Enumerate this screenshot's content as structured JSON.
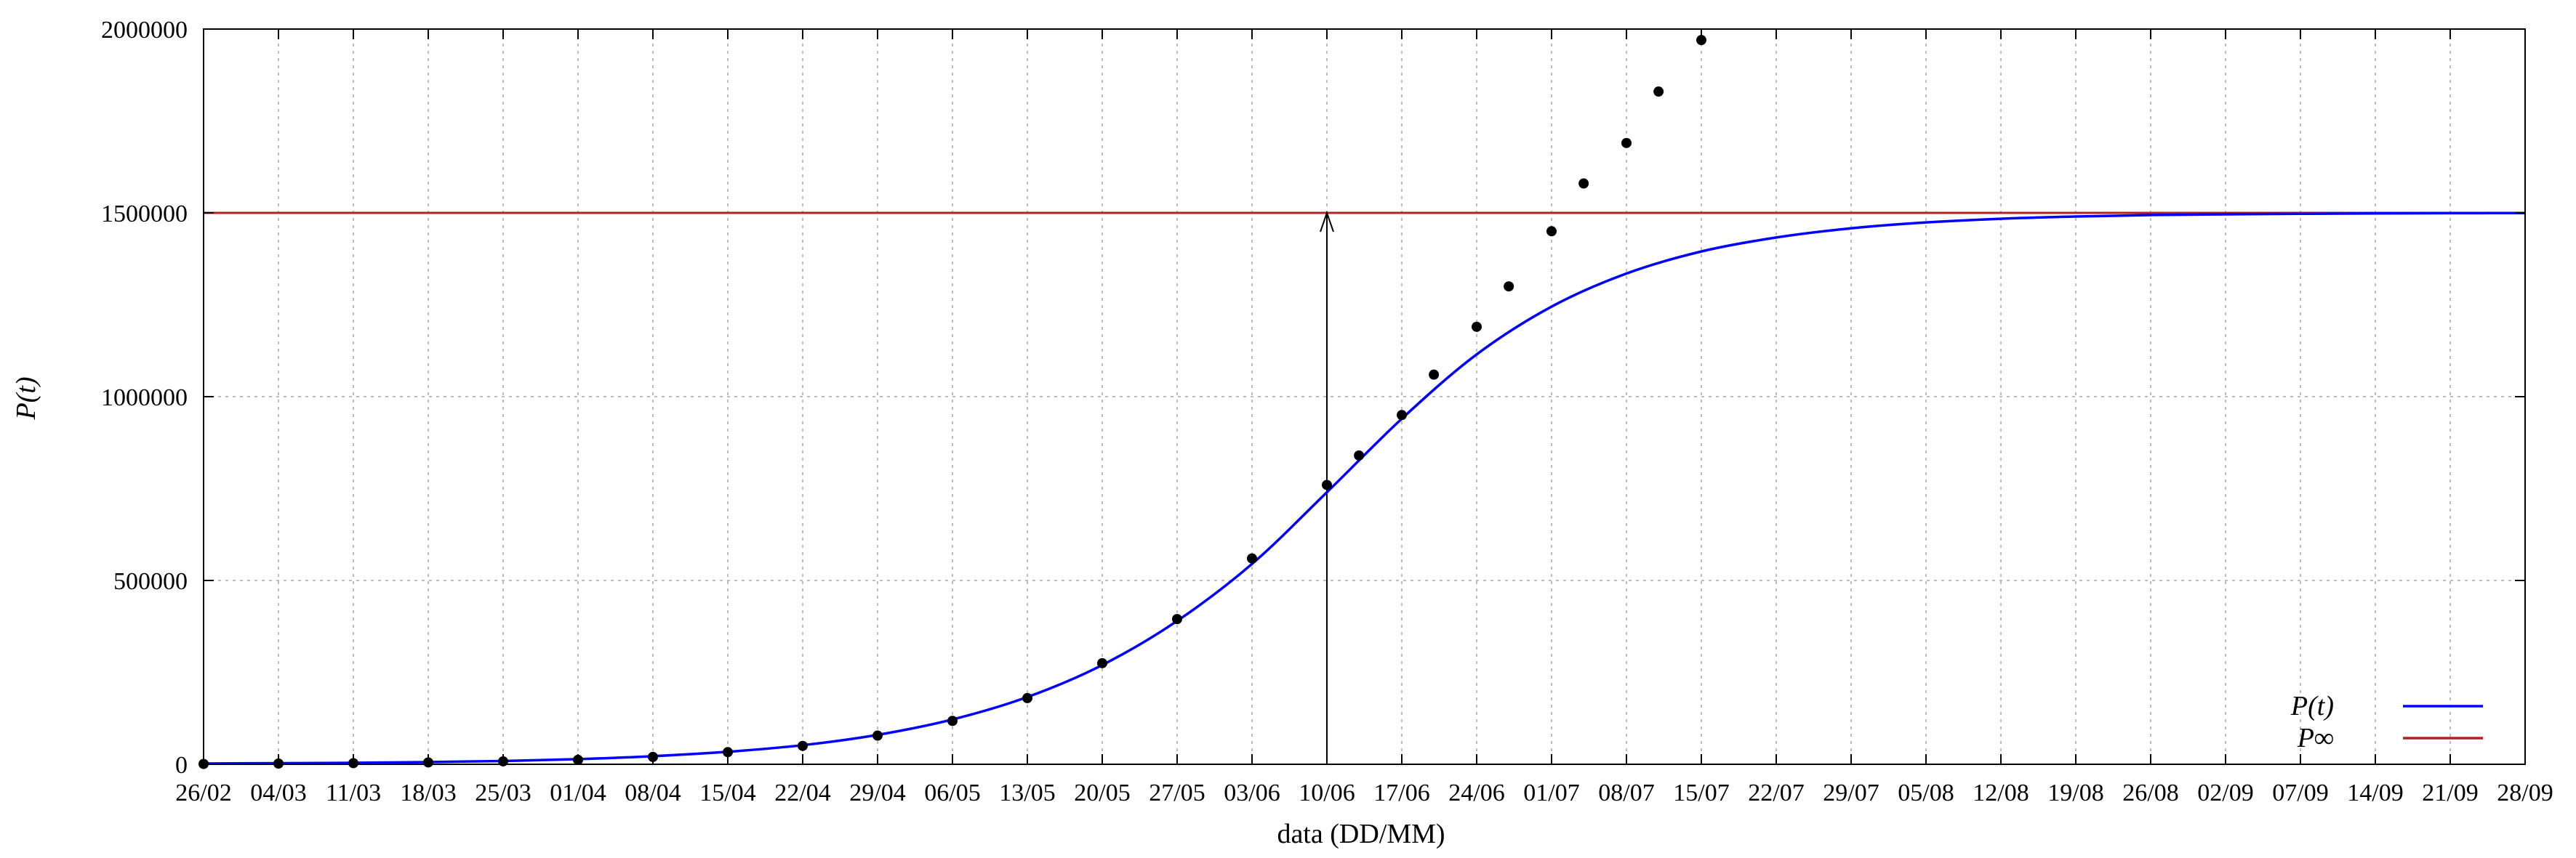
{
  "chart_data": {
    "type": "line",
    "title": "",
    "xlabel": "data (DD/MM)",
    "ylabel": "P(t)",
    "x_unit": "date (day/month)",
    "xlim": [
      "26/02",
      "28/09"
    ],
    "ylim": [
      0,
      2000000
    ],
    "grid": true,
    "legend": "bottom-right",
    "x_ticks": [
      "26/02",
      "04/03",
      "11/03",
      "18/03",
      "25/03",
      "01/04",
      "08/04",
      "15/04",
      "22/04",
      "29/04",
      "06/05",
      "13/05",
      "20/05",
      "27/05",
      "03/06",
      "10/06",
      "17/06",
      "24/06",
      "01/07",
      "08/07",
      "15/07",
      "22/07",
      "29/07",
      "05/08",
      "12/08",
      "19/08",
      "26/08",
      "02/09",
      "07/09",
      "14/09",
      "21/09",
      "28/09"
    ],
    "y_ticks": [
      0,
      500000,
      1000000,
      1500000,
      2000000
    ],
    "y_tick_labels": [
      "0",
      "500000",
      "1000000",
      "1500000",
      "2000000"
    ],
    "series": [
      {
        "name": "P(t)",
        "kind": "line",
        "color": "#0000ff",
        "model": "logistic",
        "points": [
          {
            "x": "26/02",
            "y": 2000
          },
          {
            "x": "04/03",
            "y": 3000
          },
          {
            "x": "11/03",
            "y": 4000
          },
          {
            "x": "18/03",
            "y": 6000
          },
          {
            "x": "25/03",
            "y": 9000
          },
          {
            "x": "01/04",
            "y": 14000
          },
          {
            "x": "08/04",
            "y": 22000
          },
          {
            "x": "15/04",
            "y": 34000
          },
          {
            "x": "22/04",
            "y": 52000
          },
          {
            "x": "29/04",
            "y": 80000
          },
          {
            "x": "06/05",
            "y": 122000
          },
          {
            "x": "13/05",
            "y": 183000
          },
          {
            "x": "20/05",
            "y": 270000
          },
          {
            "x": "27/05",
            "y": 390000
          },
          {
            "x": "03/06",
            "y": 545000
          },
          {
            "x": "10/06",
            "y": 740000
          },
          {
            "x": "17/06",
            "y": 940000
          },
          {
            "x": "24/06",
            "y": 1115000
          },
          {
            "x": "01/07",
            "y": 1245000
          },
          {
            "x": "08/07",
            "y": 1335000
          },
          {
            "x": "15/07",
            "y": 1395000
          },
          {
            "x": "22/07",
            "y": 1433000
          },
          {
            "x": "29/07",
            "y": 1458000
          },
          {
            "x": "05/08",
            "y": 1474000
          },
          {
            "x": "12/08",
            "y": 1484000
          },
          {
            "x": "19/08",
            "y": 1490000
          },
          {
            "x": "26/08",
            "y": 1494000
          },
          {
            "x": "02/09",
            "y": 1496000
          },
          {
            "x": "07/09",
            "y": 1497500
          },
          {
            "x": "14/09",
            "y": 1498500
          },
          {
            "x": "21/09",
            "y": 1499200
          },
          {
            "x": "28/09",
            "y": 1499600
          }
        ]
      },
      {
        "name": "P∞",
        "kind": "hline",
        "color": "#b22222",
        "y": 1500000
      },
      {
        "name": "",
        "kind": "scatter",
        "color": "#000000",
        "points": [
          {
            "x": "26/02",
            "y": 1000
          },
          {
            "x": "04/03",
            "y": 2000
          },
          {
            "x": "11/03",
            "y": 3000
          },
          {
            "x": "18/03",
            "y": 5000
          },
          {
            "x": "25/03",
            "y": 8000
          },
          {
            "x": "01/04",
            "y": 12000
          },
          {
            "x": "08/04",
            "y": 20000
          },
          {
            "x": "15/04",
            "y": 33000
          },
          {
            "x": "22/04",
            "y": 50000
          },
          {
            "x": "29/04",
            "y": 78000
          },
          {
            "x": "06/05",
            "y": 118000
          },
          {
            "x": "13/05",
            "y": 180000
          },
          {
            "x": "20/05",
            "y": 275000
          },
          {
            "x": "27/05",
            "y": 395000
          },
          {
            "x": "03/06",
            "y": 560000
          },
          {
            "x": "10/06",
            "y": 760000
          },
          {
            "x": "13/06",
            "y": 840000
          },
          {
            "x": "17/06",
            "y": 950000
          },
          {
            "x": "20/06",
            "y": 1060000
          },
          {
            "x": "24/06",
            "y": 1190000
          },
          {
            "x": "27/06",
            "y": 1300000
          },
          {
            "x": "01/07",
            "y": 1450000
          },
          {
            "x": "04/07",
            "y": 1580000
          },
          {
            "x": "08/07",
            "y": 1690000
          },
          {
            "x": "11/07",
            "y": 1830000
          },
          {
            "x": "15/07",
            "y": 1970000
          }
        ]
      }
    ],
    "annotations": [
      {
        "type": "arrow",
        "x": "10/06",
        "from_y": 0,
        "to_y": 1500000
      }
    ]
  }
}
